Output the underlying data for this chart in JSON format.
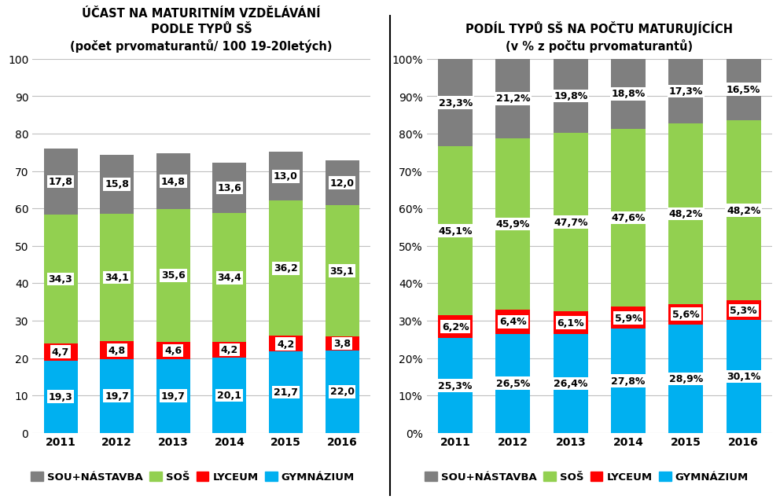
{
  "years": [
    "2011",
    "2012",
    "2013",
    "2014",
    "2015",
    "2016"
  ],
  "left": {
    "title": "ÚČAST NA MATURITNÍM VZDĚLÁVÁNÍ\nPODLE TYPŮ SŠ\n(počet prvomaturantů/ 100 19-20letých)",
    "gymnazium": [
      19.3,
      19.7,
      19.7,
      20.1,
      21.7,
      22.0
    ],
    "lyceum": [
      4.7,
      4.8,
      4.6,
      4.2,
      4.2,
      3.8
    ],
    "sos": [
      34.3,
      34.1,
      35.6,
      34.4,
      36.2,
      35.1
    ],
    "sou": [
      17.8,
      15.8,
      14.8,
      13.6,
      13.0,
      12.0
    ],
    "ylim": [
      0,
      100
    ],
    "yticks": [
      0,
      10,
      20,
      30,
      40,
      50,
      60,
      70,
      80,
      90,
      100
    ],
    "gym_labels": [
      "19,3",
      "19,7",
      "19,7",
      "20,1",
      "21,7",
      "22,0"
    ],
    "lyc_labels": [
      "4,7",
      "4,8",
      "4,6",
      "4,2",
      "4,2",
      "3,8"
    ],
    "sos_labels": [
      "34,3",
      "34,1",
      "35,6",
      "34,4",
      "36,2",
      "35,1"
    ],
    "sou_labels": [
      "17,8",
      "15,8",
      "14,8",
      "13,6",
      "13,0",
      "12,0"
    ]
  },
  "right": {
    "title": "PODÍL TYPŮ SŠ NA POČTU MATURUJÍCÍCH\n(v % z počtu prvomaturantů)",
    "gymnazium": [
      25.3,
      26.5,
      26.4,
      27.8,
      28.9,
      30.1
    ],
    "lyceum": [
      6.2,
      6.4,
      6.1,
      5.9,
      5.6,
      5.3
    ],
    "sos": [
      45.1,
      45.9,
      47.7,
      47.6,
      48.2,
      48.2
    ],
    "sou": [
      23.3,
      21.2,
      19.8,
      18.8,
      17.3,
      16.5
    ],
    "ylim": [
      0,
      100
    ],
    "ytick_labels": [
      "0%",
      "10%",
      "20%",
      "30%",
      "40%",
      "50%",
      "60%",
      "70%",
      "80%",
      "90%",
      "100%"
    ],
    "gym_labels": [
      "25,3%",
      "26,5%",
      "26,4%",
      "27,8%",
      "28,9%",
      "30,1%"
    ],
    "lyc_labels": [
      "6,2%",
      "6,4%",
      "6,1%",
      "5,9%",
      "5,6%",
      "5,3%"
    ],
    "sos_labels": [
      "45,1%",
      "45,9%",
      "47,7%",
      "47,6%",
      "48,2%",
      "48,2%"
    ],
    "sou_labels": [
      "23,3%",
      "21,2%",
      "19,8%",
      "18,8%",
      "17,3%",
      "16,5%"
    ]
  },
  "colors": {
    "gymnazium": "#00B0F0",
    "lyceum": "#FF0000",
    "sos": "#92D050",
    "sou": "#7F7F7F"
  },
  "legend_labels": [
    "SOU+NÁSTAVBA",
    "SOŠ",
    "LYCEUM",
    "GYMNÁZIUM"
  ],
  "legend_colors": [
    "#7F7F7F",
    "#92D050",
    "#FF0000",
    "#00B0F0"
  ],
  "bar_width": 0.6,
  "label_fontsize": 9,
  "title_fontsize": 10.5,
  "tick_fontsize": 10,
  "legend_fontsize": 9.5,
  "bg_color": "#FFFFFF",
  "grid_color": "#C0C0C0"
}
